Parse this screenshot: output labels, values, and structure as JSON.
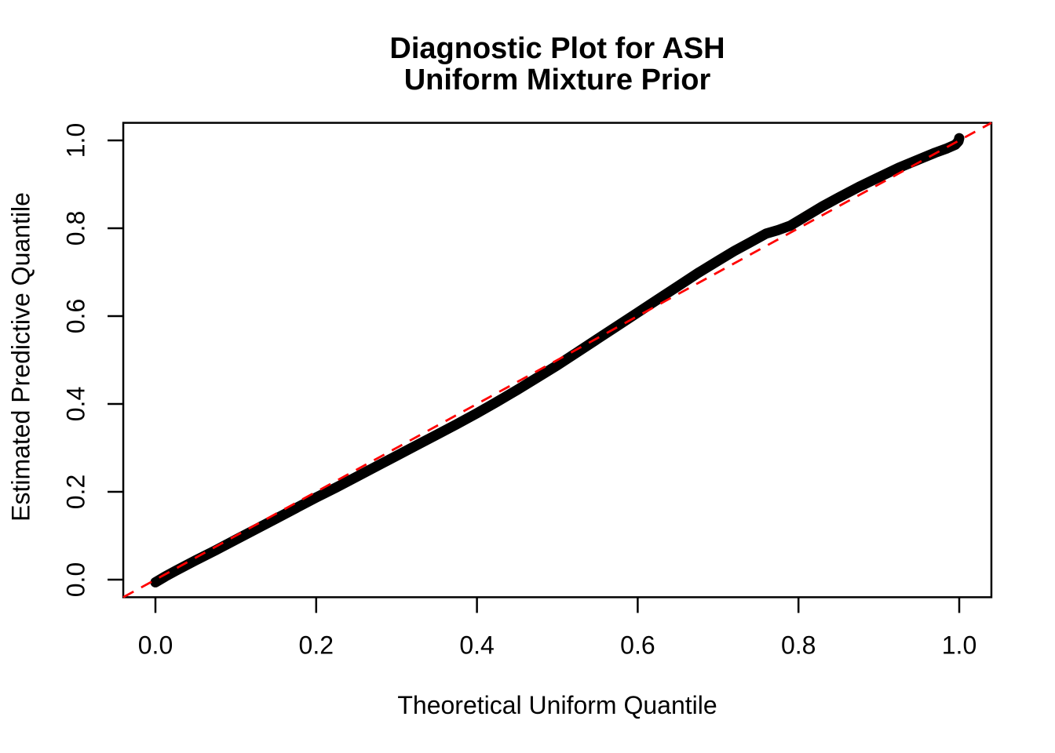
{
  "title": {
    "line1": "Diagnostic Plot for ASH",
    "line2": "Uniform Mixture Prior"
  },
  "axes": {
    "x": {
      "label": "Theoretical Uniform Quantile",
      "ticks": [
        "0.0",
        "0.2",
        "0.4",
        "0.6",
        "0.8",
        "1.0"
      ],
      "tick_values": [
        0.0,
        0.2,
        0.4,
        0.6,
        0.8,
        1.0
      ]
    },
    "y": {
      "label": "Estimated Predictive Quantile",
      "ticks": [
        "0.0",
        "0.2",
        "0.4",
        "0.6",
        "0.8",
        "1.0"
      ],
      "tick_values": [
        0.0,
        0.2,
        0.4,
        0.6,
        0.8,
        1.0
      ]
    }
  },
  "colors": {
    "curve": "#000000",
    "reference_line": "#FF0000",
    "frame": "#000000",
    "background": "#FFFFFF"
  },
  "chart_data": {
    "type": "scatter",
    "title": "Diagnostic Plot for ASH\nUniform Mixture Prior",
    "xlabel": "Theoretical Uniform Quantile",
    "ylabel": "Estimated Predictive Quantile",
    "xlim": [
      -0.04,
      1.04
    ],
    "ylim": [
      -0.04,
      1.04
    ],
    "x_ticks": [
      0.0,
      0.2,
      0.4,
      0.6,
      0.8,
      1.0
    ],
    "y_ticks": [
      0.0,
      0.2,
      0.4,
      0.6,
      0.8,
      1.0
    ],
    "grid": false,
    "legend": "none",
    "reference_line": {
      "slope": 1,
      "intercept": 0,
      "style": "dashed",
      "color": "#FF0000"
    },
    "series": [
      {
        "name": "quantile-points",
        "color": "#000000",
        "marker": "dense-points",
        "points": [
          [
            0.0,
            -0.006
          ],
          [
            0.012,
            0.007
          ],
          [
            0.025,
            0.02
          ],
          [
            0.05,
            0.044
          ],
          [
            0.075,
            0.067
          ],
          [
            0.1,
            0.091
          ],
          [
            0.125,
            0.115
          ],
          [
            0.15,
            0.139
          ],
          [
            0.175,
            0.163
          ],
          [
            0.2,
            0.187
          ],
          [
            0.225,
            0.21
          ],
          [
            0.25,
            0.234
          ],
          [
            0.275,
            0.258
          ],
          [
            0.3,
            0.282
          ],
          [
            0.325,
            0.306
          ],
          [
            0.35,
            0.33
          ],
          [
            0.375,
            0.354
          ],
          [
            0.4,
            0.379
          ],
          [
            0.425,
            0.405
          ],
          [
            0.45,
            0.432
          ],
          [
            0.475,
            0.46
          ],
          [
            0.5,
            0.488
          ],
          [
            0.525,
            0.518
          ],
          [
            0.55,
            0.548
          ],
          [
            0.575,
            0.578
          ],
          [
            0.6,
            0.608
          ],
          [
            0.625,
            0.638
          ],
          [
            0.65,
            0.668
          ],
          [
            0.675,
            0.698
          ],
          [
            0.7,
            0.726
          ],
          [
            0.72,
            0.748
          ],
          [
            0.74,
            0.768
          ],
          [
            0.76,
            0.788
          ],
          [
            0.775,
            0.796
          ],
          [
            0.79,
            0.806
          ],
          [
            0.81,
            0.828
          ],
          [
            0.83,
            0.85
          ],
          [
            0.85,
            0.87
          ],
          [
            0.875,
            0.894
          ],
          [
            0.9,
            0.916
          ],
          [
            0.925,
            0.938
          ],
          [
            0.95,
            0.957
          ],
          [
            0.97,
            0.972
          ],
          [
            0.985,
            0.982
          ],
          [
            0.995,
            0.99
          ],
          [
            0.999,
            0.998
          ],
          [
            1.0,
            1.005
          ]
        ]
      }
    ]
  }
}
